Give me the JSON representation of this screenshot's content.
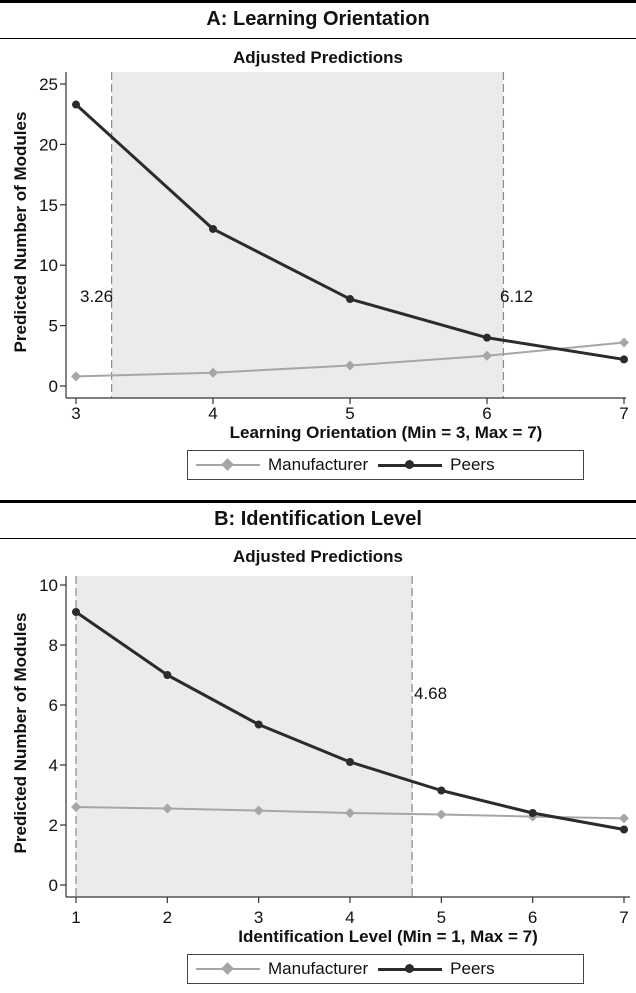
{
  "chart_data": [
    {
      "type": "line",
      "panel_title": "A: Learning Orientation",
      "title": "Adjusted Predictions",
      "xlabel": "Learning Orientation (Min = 3, Max = 7)",
      "ylabel": "Predicted Number of Modules",
      "xlim": [
        3,
        7
      ],
      "ylim": [
        0,
        25
      ],
      "xticks": [
        "3",
        "4",
        "5",
        "6",
        "7"
      ],
      "yticks": [
        "0",
        "5",
        "10",
        "15",
        "20",
        "25"
      ],
      "x": [
        3,
        4,
        5,
        6,
        7
      ],
      "series": [
        {
          "name": "Manufacturer",
          "values": [
            0.8,
            1.1,
            1.7,
            2.5,
            3.6
          ],
          "color": "#a6a6a6",
          "marker": "diamond"
        },
        {
          "name": "Peers",
          "values": [
            23.3,
            13.0,
            7.2,
            4.0,
            2.2
          ],
          "color": "#2b2b2b",
          "marker": "circle"
        }
      ],
      "shaded_region": [
        3.26,
        6.12
      ],
      "region_labels": [
        "3.26",
        "6.12"
      ],
      "legend": "bottom"
    },
    {
      "type": "line",
      "panel_title": "B: Identification Level",
      "title": "Adjusted Predictions",
      "xlabel": "Identification Level (Min = 1, Max = 7)",
      "ylabel": "Predicted Number of Modules",
      "xlim": [
        1,
        7
      ],
      "ylim": [
        0,
        10
      ],
      "xticks": [
        "1",
        "2",
        "3",
        "4",
        "5",
        "6",
        "7"
      ],
      "yticks": [
        "0",
        "2",
        "4",
        "6",
        "8",
        "10"
      ],
      "x": [
        1,
        2,
        3,
        4,
        5,
        6,
        7
      ],
      "series": [
        {
          "name": "Manufacturer",
          "values": [
            2.6,
            2.55,
            2.48,
            2.4,
            2.35,
            2.28,
            2.22
          ],
          "color": "#a6a6a6",
          "marker": "diamond"
        },
        {
          "name": "Peers",
          "values": [
            9.1,
            7.0,
            5.35,
            4.1,
            3.15,
            2.4,
            1.85
          ],
          "color": "#2b2b2b",
          "marker": "circle"
        }
      ],
      "shaded_region": [
        1,
        4.68
      ],
      "region_labels": [
        "4.68"
      ],
      "legend": "bottom"
    }
  ]
}
